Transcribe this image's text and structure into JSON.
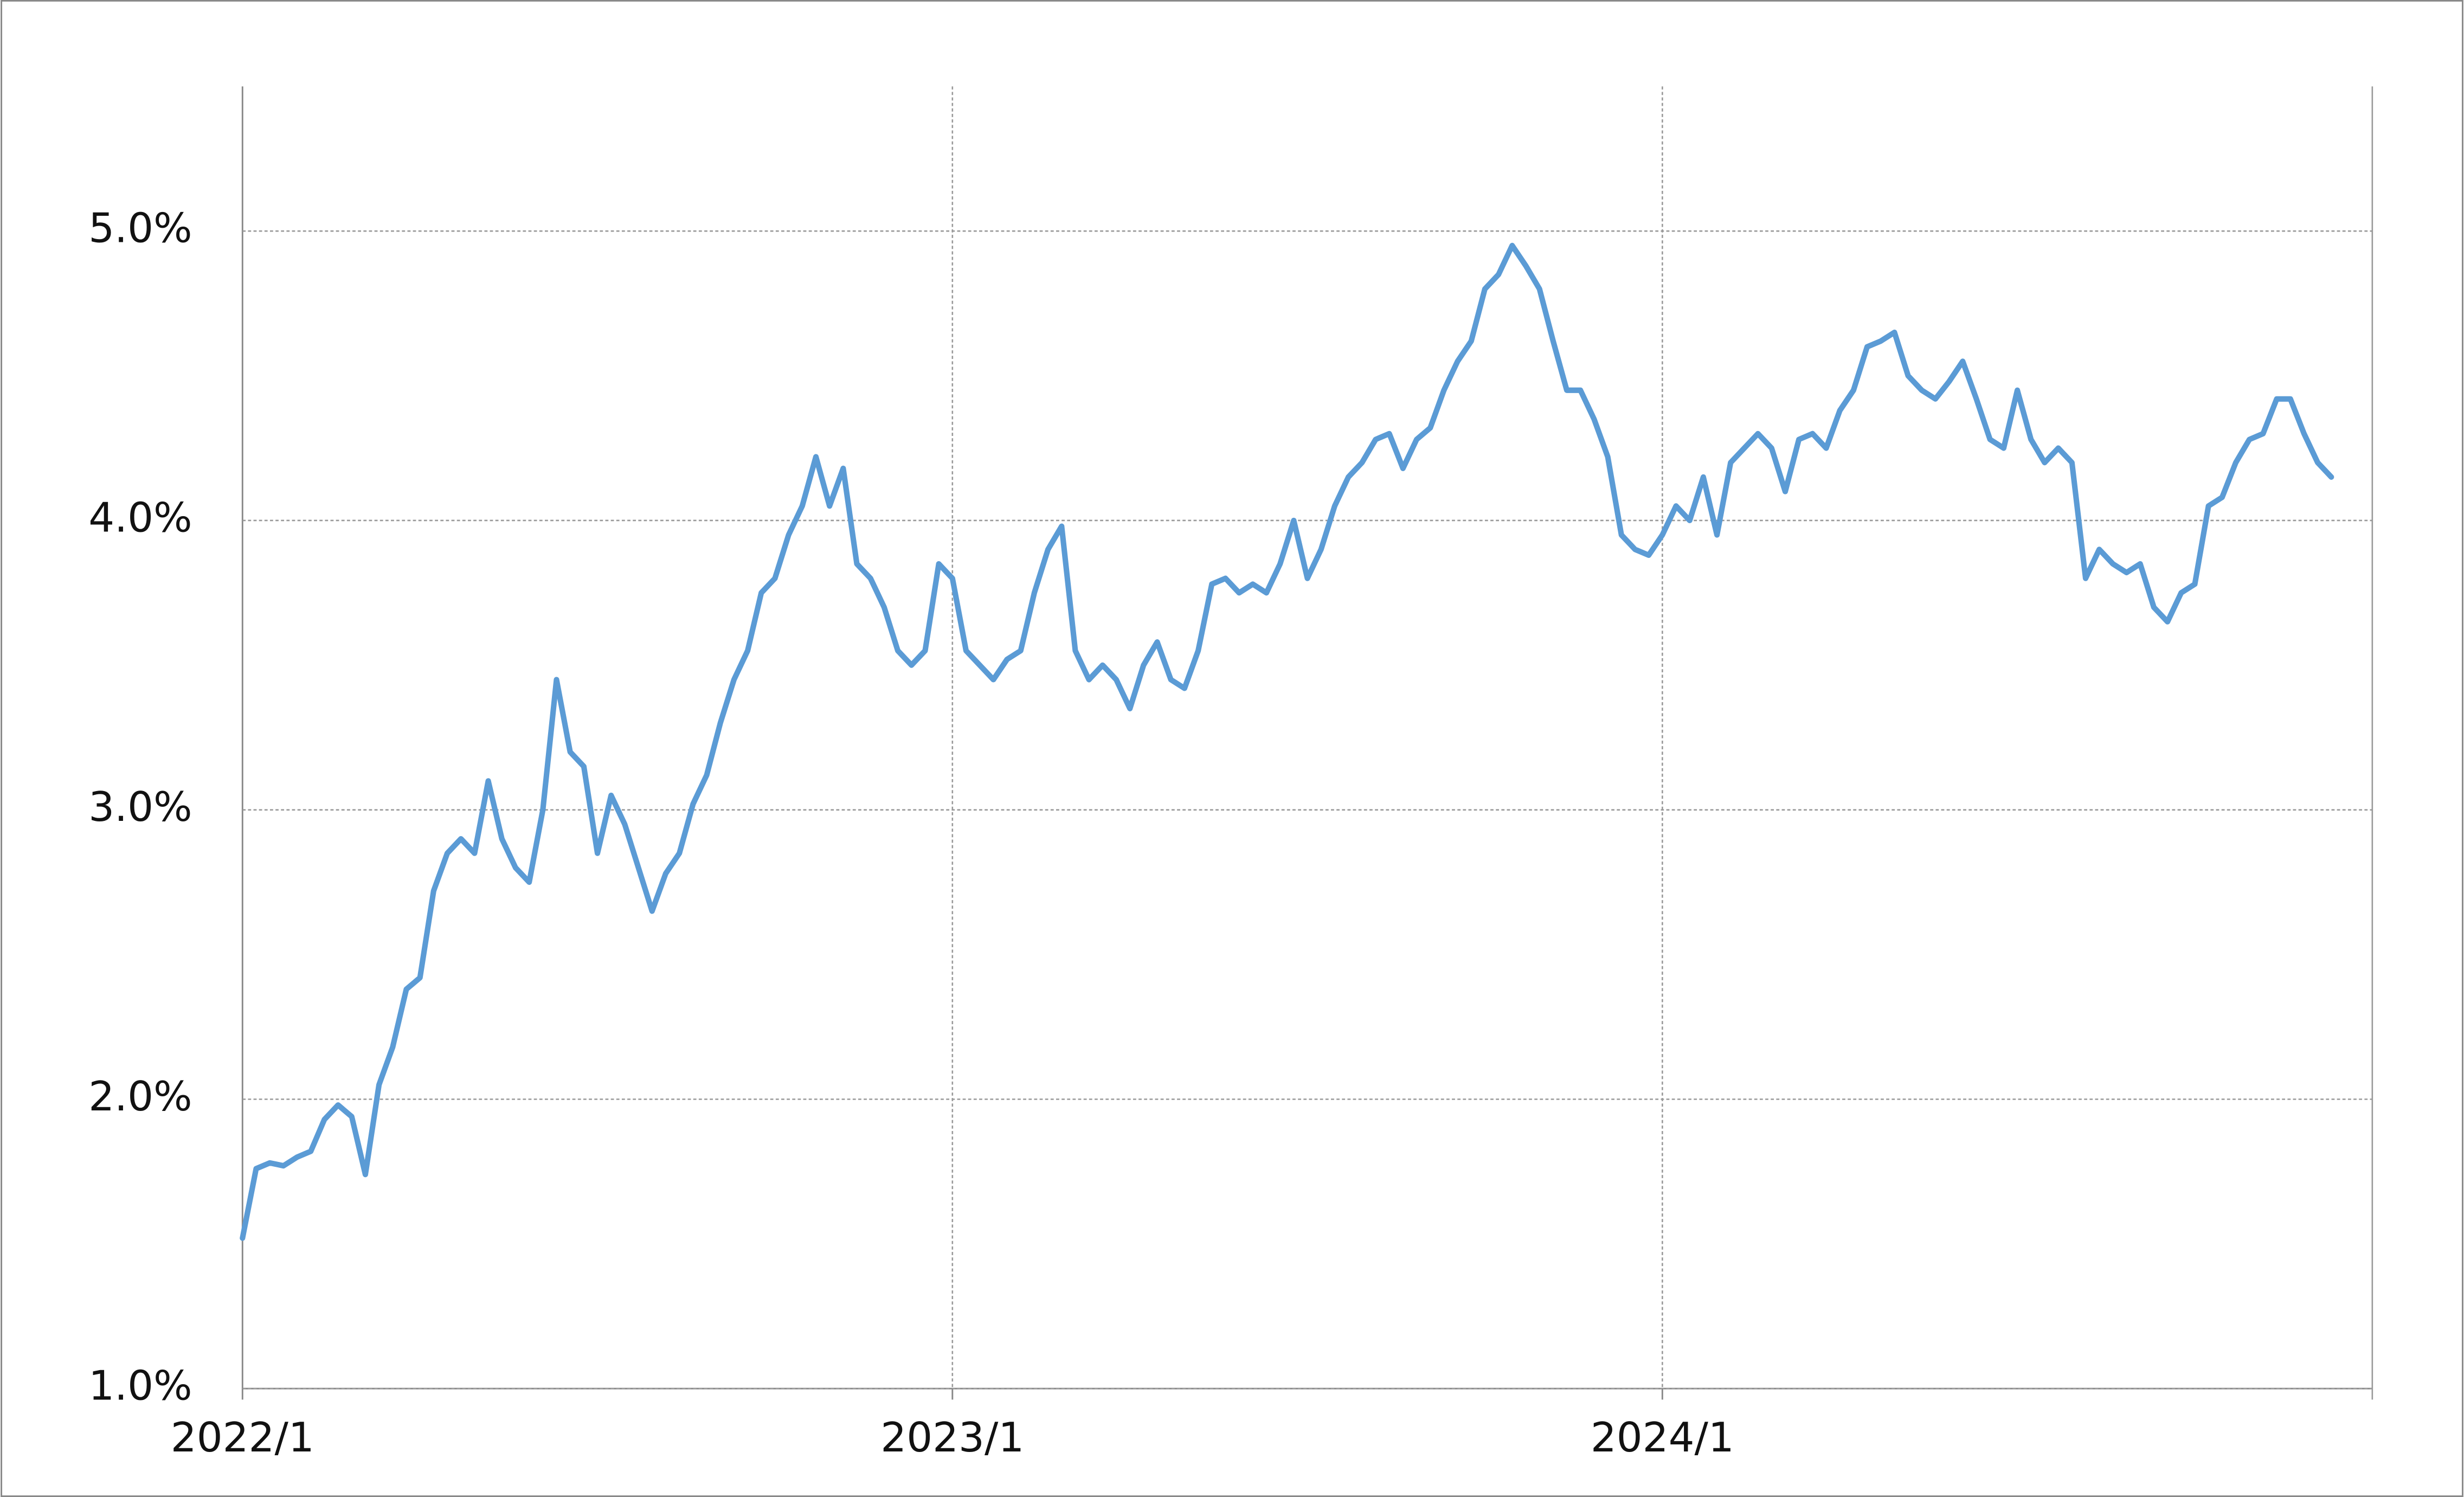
{
  "chart_data": {
    "type": "line",
    "categories": [
      "2022/1",
      null,
      null,
      null,
      null,
      null,
      null,
      null,
      null,
      null,
      null,
      null,
      null,
      null,
      null,
      null,
      null,
      null,
      null,
      null,
      null,
      null,
      null,
      null,
      null,
      null,
      null,
      null,
      null,
      null,
      null,
      null,
      null,
      null,
      null,
      null,
      null,
      null,
      null,
      null,
      null,
      null,
      null,
      null,
      null,
      null,
      null,
      null,
      null,
      null,
      null,
      null,
      "2023/1",
      null,
      null,
      null,
      null,
      null,
      null,
      null,
      null,
      null,
      null,
      null,
      null,
      null,
      null,
      null,
      null,
      null,
      null,
      null,
      null,
      null,
      null,
      null,
      null,
      null,
      null,
      null,
      null,
      null,
      null,
      null,
      null,
      null,
      null,
      null,
      null,
      null,
      null,
      null,
      null,
      null,
      null,
      null,
      null,
      null,
      null,
      null,
      null,
      null,
      null,
      null,
      "2024/1",
      null,
      null,
      null,
      null,
      null,
      null,
      null,
      null,
      null,
      null,
      null,
      null,
      null,
      null,
      null,
      null,
      null,
      null,
      null,
      null,
      null,
      null,
      null,
      null,
      null,
      null,
      null,
      null,
      null,
      null,
      null,
      null,
      null,
      null,
      null,
      null,
      null,
      null,
      null,
      null,
      null,
      null,
      null,
      null,
      null,
      null,
      null,
      null,
      null,
      null,
      null,
      null
    ],
    "values": [
      1.52,
      1.76,
      1.78,
      1.77,
      1.8,
      1.82,
      1.93,
      1.98,
      1.94,
      1.74,
      2.05,
      2.18,
      2.38,
      2.42,
      2.72,
      2.85,
      2.9,
      2.85,
      3.1,
      2.9,
      2.8,
      2.75,
      3.0,
      3.45,
      3.2,
      3.15,
      2.85,
      3.05,
      2.95,
      2.8,
      2.65,
      2.78,
      2.85,
      3.02,
      3.12,
      3.3,
      3.45,
      3.55,
      3.75,
      3.8,
      3.95,
      4.05,
      4.22,
      4.05,
      4.18,
      3.85,
      3.8,
      3.7,
      3.55,
      3.5,
      3.55,
      3.85,
      3.8,
      3.55,
      3.5,
      3.45,
      3.52,
      3.55,
      3.75,
      3.9,
      3.98,
      3.55,
      3.45,
      3.5,
      3.45,
      3.35,
      3.5,
      3.58,
      3.45,
      3.42,
      3.55,
      3.78,
      3.8,
      3.75,
      3.78,
      3.75,
      3.85,
      4.0,
      3.8,
      3.9,
      4.05,
      4.15,
      4.2,
      4.28,
      4.3,
      4.18,
      4.28,
      4.32,
      4.45,
      4.55,
      4.62,
      4.8,
      4.85,
      4.95,
      4.88,
      4.8,
      4.62,
      4.45,
      4.45,
      4.35,
      4.22,
      3.95,
      3.9,
      3.88,
      3.95,
      4.05,
      4.0,
      4.15,
      3.95,
      4.2,
      4.25,
      4.3,
      4.25,
      4.1,
      4.28,
      4.3,
      4.25,
      4.38,
      4.45,
      4.6,
      4.62,
      4.65,
      4.5,
      4.45,
      4.42,
      4.48,
      4.55,
      4.42,
      4.28,
      4.25,
      4.45,
      4.28,
      4.2,
      4.25,
      4.2,
      3.8,
      3.9,
      3.85,
      3.82,
      3.85,
      3.7,
      3.65,
      3.75,
      3.78,
      4.05,
      4.08,
      4.2,
      4.28,
      4.3,
      4.42,
      4.42,
      4.3,
      4.2,
      4.15,
      null,
      null,
      null
    ],
    "color": "#5b9bd5",
    "ylim": [
      1,
      5.5
    ],
    "yticks": [
      {
        "value": 1,
        "label": "1.0%"
      },
      {
        "value": 2,
        "label": "2.0%"
      },
      {
        "value": 3,
        "label": "3.0%"
      },
      {
        "value": 4,
        "label": "4.0%"
      },
      {
        "value": 5,
        "label": "5.0%"
      }
    ],
    "grid": true
  }
}
